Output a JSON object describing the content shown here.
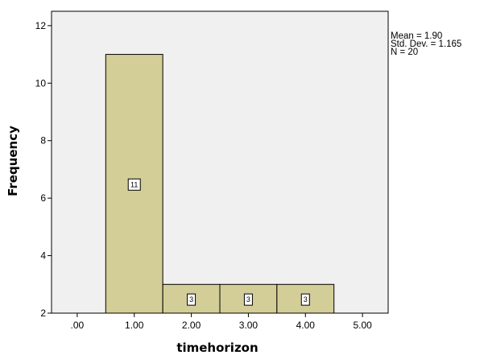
{
  "chart_data": {
    "type": "bar",
    "xlabel": "timehorizon",
    "ylabel": "Frequency",
    "xlim": [
      -0.45,
      5.45
    ],
    "ylim": [
      2,
      12.5
    ],
    "x_ticks": [
      0,
      1,
      2,
      3,
      4,
      5
    ],
    "x_tick_labels": [
      ".00",
      "1.00",
      "2.00",
      "3.00",
      "4.00",
      "5.00"
    ],
    "y_ticks": [
      2,
      4,
      6,
      8,
      10,
      12
    ],
    "y_tick_labels": [
      "2",
      "4",
      "6",
      "8",
      "10",
      "12"
    ],
    "bars": [
      {
        "x": 1,
        "value": 11,
        "label": "11"
      },
      {
        "x": 2,
        "value": 3,
        "label": "3"
      },
      {
        "x": 3,
        "value": 3,
        "label": "3"
      },
      {
        "x": 4,
        "value": 3,
        "label": "3"
      }
    ],
    "bar_width": 1,
    "stats": [
      "Mean = 1.90",
      "Std. Dev. = 1.165",
      "N = 20"
    ],
    "plot_background": "#f0f0f0",
    "bar_color": "#d3ce97",
    "grid": false
  }
}
